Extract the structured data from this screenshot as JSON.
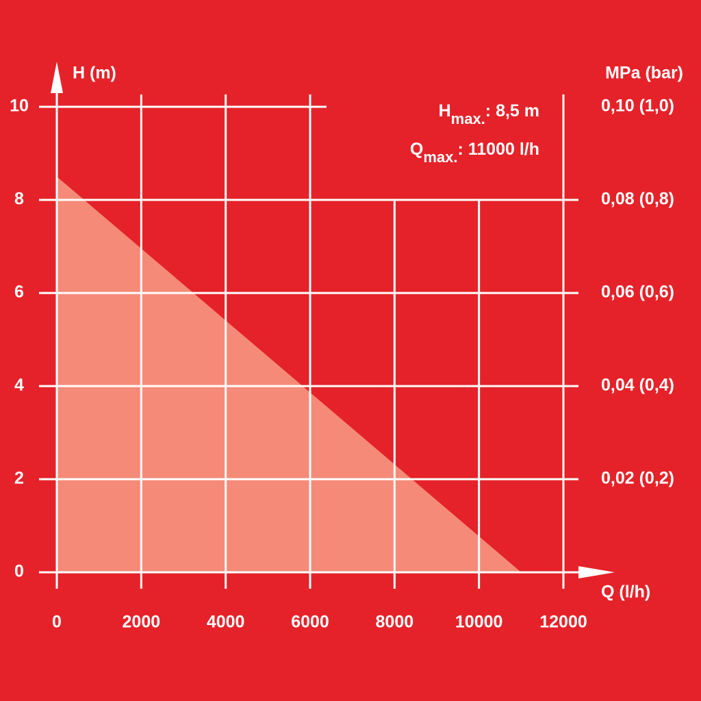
{
  "chart_data": {
    "type": "area",
    "x": [
      0,
      11000
    ],
    "values": [
      8.5,
      0
    ],
    "xlim": [
      0,
      12000
    ],
    "xticks": [
      0,
      2000,
      4000,
      6000,
      8000,
      10000,
      12000
    ],
    "ylim": [
      0,
      10
    ],
    "yticks": [
      0,
      2,
      4,
      6,
      8,
      10
    ],
    "y2lim": [
      0,
      0.1
    ],
    "y2ticks": [
      {
        "value": 0.02,
        "label": "0,02 (0,2)"
      },
      {
        "value": 0.04,
        "label": "0,04 (0,4)"
      },
      {
        "value": 0.06,
        "label": "0,06 (0,6)"
      },
      {
        "value": 0.08,
        "label": "0,08 (0,8)"
      },
      {
        "value": 0.1,
        "label": "0,10 (1,0)"
      }
    ],
    "ylabel": "H (m)",
    "y2label": "MPa (bar)",
    "xlabel": "Q (l/h)",
    "color": "#f68a78",
    "background": "#e52229",
    "grid": true,
    "annotations": [
      {
        "main": "H",
        "sub": "max.",
        "rest": ": 8,5 m"
      },
      {
        "main": "Q",
        "sub": "max.",
        "rest": ": 11000 l/h"
      }
    ]
  }
}
